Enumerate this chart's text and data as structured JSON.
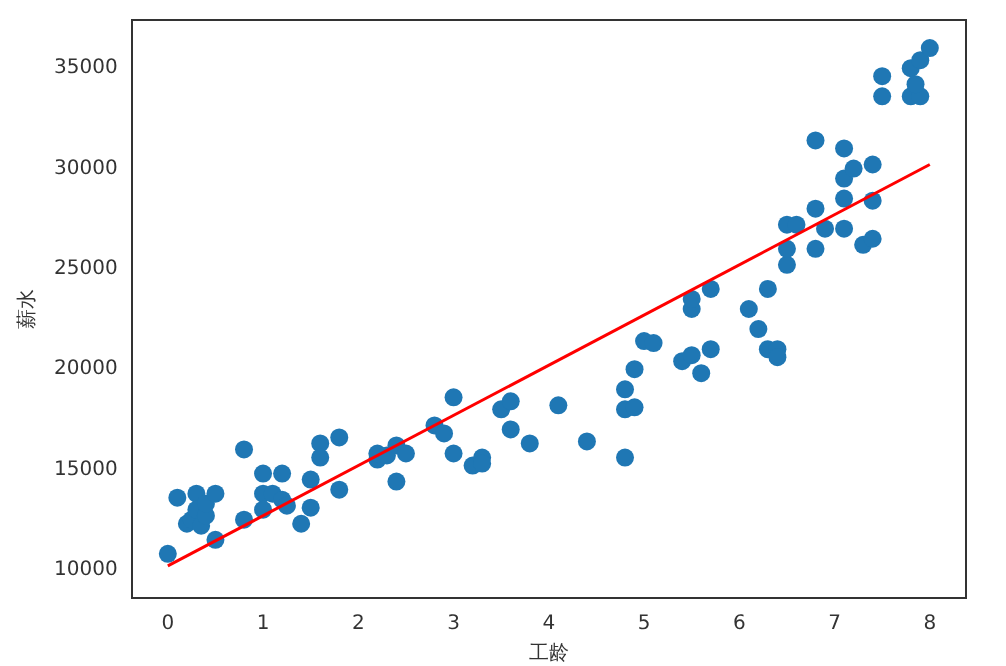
{
  "chart_data": {
    "type": "scatter",
    "xlabel": "工龄",
    "ylabel": "薪水",
    "xlim": [
      -0.38,
      8.38
    ],
    "ylim": [
      8600,
      37400
    ],
    "xticks": [
      0,
      1,
      2,
      3,
      4,
      5,
      6,
      7,
      8
    ],
    "yticks": [
      10000,
      15000,
      20000,
      25000,
      30000,
      35000
    ],
    "grid": false,
    "legend": false,
    "marker": "circle",
    "series": [
      {
        "color": "#1f77b4",
        "x": [
          0,
          0.1,
          0.2,
          0.25,
          0.3,
          0.3,
          0.35,
          0.4,
          0.4,
          0.5,
          0.5,
          0.8,
          0.8,
          1,
          1,
          1,
          1.1,
          1.2,
          1.2,
          1.25,
          1.4,
          1.5,
          1.5,
          1.6,
          1.6,
          1.8,
          1.8,
          2.2,
          2.2,
          2.3,
          2.4,
          2.4,
          2.5,
          2.8,
          2.9,
          3,
          3,
          3.2,
          3.3,
          3.3,
          3.5,
          3.6,
          3.6,
          3.8,
          4.1,
          4.4,
          4.8,
          4.8,
          4.9,
          4.9,
          4.8,
          5,
          5.1,
          5.4,
          5.5,
          5.5,
          5.5,
          5.6,
          5.7,
          5.7,
          6.1,
          6.2,
          6.3,
          6.3,
          6.4,
          6.4,
          6.5,
          6.5,
          6.5,
          6.6,
          6.8,
          6.8,
          6.8,
          6.9,
          7.1,
          7.1,
          7.1,
          7.1,
          7.2,
          7.3,
          7.4,
          7.4,
          7.4,
          7.5,
          7.5,
          7.8,
          7.8,
          7.9,
          7.9,
          8,
          7.85
        ],
        "values": [
          10800,
          13600,
          12300,
          12500,
          13800,
          13000,
          12200,
          12700,
          13300,
          13800,
          11500,
          16000,
          12500,
          14800,
          13800,
          13000,
          13800,
          14800,
          13500,
          13200,
          12300,
          13100,
          14500,
          16300,
          15600,
          16600,
          14000,
          15500,
          15800,
          15700,
          16200,
          14400,
          15800,
          17200,
          16800,
          18600,
          15800,
          15200,
          15600,
          15300,
          18000,
          18400,
          17000,
          16300,
          18200,
          16400,
          19000,
          18000,
          18100,
          20000,
          15600,
          21400,
          21300,
          20400,
          20700,
          23000,
          23500,
          19800,
          24000,
          21000,
          23000,
          22000,
          24000,
          21000,
          21000,
          20600,
          25200,
          26000,
          27200,
          27200,
          31400,
          28000,
          26000,
          27000,
          31000,
          29500,
          28500,
          27000,
          30000,
          26200,
          30200,
          28400,
          26500,
          34600,
          33600,
          35000,
          33600,
          35400,
          33600,
          36000,
          34200
        ]
      },
      {
        "type": "line",
        "marker": "none",
        "color": "#ff0000",
        "x": [
          0,
          8
        ],
        "values": [
          10200,
          30200
        ]
      }
    ]
  }
}
